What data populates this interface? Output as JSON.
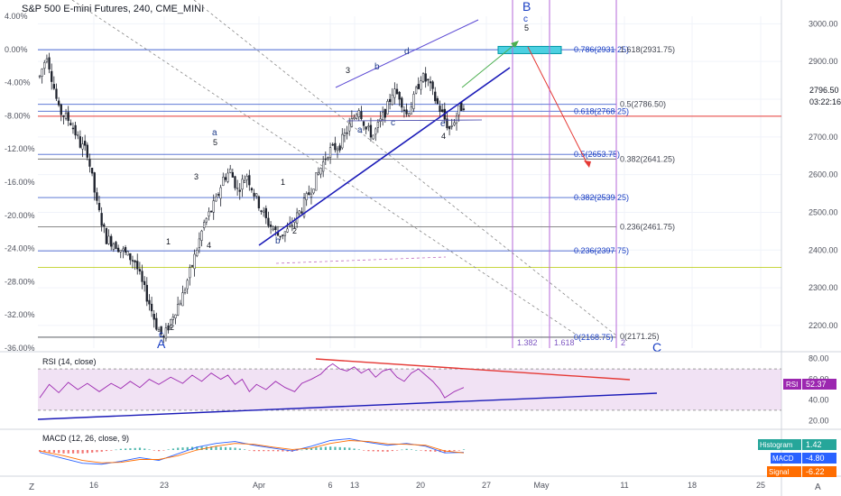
{
  "header": {
    "symbol_title": "S&P 500 E-mini Futures, 240, CME_MINI"
  },
  "colors": {
    "up_candle": "#26a69a",
    "down_candle": "#ef5350",
    "wave_label": "#1e3a8a",
    "fib_label": "#1a3fc4",
    "trend_blue": "#1b1bb8",
    "rsi_line": "#9c27b0",
    "rsi_band": "#e1bee7",
    "fib_box": "#4dd0e1",
    "red_line": "#e53935",
    "macd_line": "#2962ff",
    "signal_line": "#ff6d00",
    "green_arrow": "#4caf50"
  },
  "chart_data": {
    "type": "candlestick",
    "title": "S&P 500 E-mini Futures, 240, CME_MINI",
    "price_axis": {
      "ticks": [
        "3000.00",
        "2900.00",
        "2800.00",
        "2700.00",
        "2600.00",
        "2500.00",
        "2400.00",
        "2300.00",
        "2200.00"
      ],
      "range": [
        2140,
        3020
      ],
      "last_price": "2796.50",
      "countdown": "03:22:16"
    },
    "percent_axis": {
      "ticks": [
        "4.00%",
        "0.00%",
        "-4.00%",
        "-8.00%",
        "-12.00%",
        "-16.00%",
        "-20.00%",
        "-24.00%",
        "-28.00%",
        "-32.00%",
        "-36.00%"
      ]
    },
    "x_axis": {
      "ticks": [
        "16",
        "23",
        "Apr",
        "6",
        "13",
        "20",
        "27",
        "May",
        "11",
        "18",
        "25"
      ],
      "corner_left": "Z",
      "corner_right": "A"
    },
    "price_path": [
      [
        0,
        2860
      ],
      [
        3,
        2920
      ],
      [
        8,
        2770
      ],
      [
        13,
        2740
      ],
      [
        17,
        2680
      ],
      [
        20,
        2660
      ],
      [
        24,
        2520
      ],
      [
        28,
        2430
      ],
      [
        31,
        2420
      ],
      [
        36,
        2390
      ],
      [
        40,
        2370
      ],
      [
        43,
        2310
      ],
      [
        46,
        2260
      ],
      [
        49,
        2200
      ],
      [
        52,
        2165
      ],
      [
        56,
        2230
      ],
      [
        60,
        2280
      ],
      [
        64,
        2360
      ],
      [
        69,
        2470
      ],
      [
        74,
        2530
      ],
      [
        77,
        2590
      ],
      [
        80,
        2610
      ],
      [
        83,
        2560
      ],
      [
        87,
        2600
      ],
      [
        90,
        2550
      ],
      [
        95,
        2480
      ],
      [
        100,
        2440
      ],
      [
        104,
        2450
      ],
      [
        110,
        2510
      ],
      [
        116,
        2590
      ],
      [
        121,
        2660
      ],
      [
        126,
        2680
      ],
      [
        131,
        2740
      ],
      [
        134,
        2780
      ],
      [
        137,
        2720
      ],
      [
        140,
        2705
      ],
      [
        143,
        2740
      ],
      [
        146,
        2780
      ],
      [
        148,
        2820
      ],
      [
        151,
        2810
      ],
      [
        154,
        2760
      ],
      [
        157,
        2800
      ],
      [
        160,
        2860
      ],
      [
        163,
        2845
      ],
      [
        166,
        2800
      ],
      [
        169,
        2760
      ],
      [
        172,
        2720
      ],
      [
        174,
        2745
      ],
      [
        176,
        2770
      ],
      [
        178,
        2788
      ]
    ],
    "fib_levels_left": [
      {
        "label": "0.786(2931.25)",
        "price": 2931.25
      },
      {
        "label": "0.618(2768.25)",
        "price": 2768.25
      },
      {
        "label": "0.5(2653.75)",
        "price": 2653.75
      },
      {
        "label": "0.382(2539.25)",
        "price": 2539.25
      },
      {
        "label": "0.236(2397.75)",
        "price": 2397.75
      },
      {
        "label": "0(2168.75)",
        "price": 2168.75
      }
    ],
    "fib_levels_right": [
      {
        "label": "1.618(2931.75)",
        "price": 2931.75
      },
      {
        "label": "0.5(2786.50)",
        "price": 2786.5
      },
      {
        "label": "0.382(2641.25)",
        "price": 2641.25
      },
      {
        "label": "0.236(2461.75)",
        "price": 2461.75
      },
      {
        "label": "0(2171.25)",
        "price": 2171.25
      }
    ],
    "time_fib": [
      "1.382",
      "1.618",
      "2"
    ],
    "wave_labels": {
      "A": "A",
      "B": "B",
      "C": "C",
      "c": "c",
      "5": "5",
      "a": "a",
      "b": "b",
      "d": "d",
      "e": "e",
      "w1": "1",
      "w2": "2",
      "w3": "3",
      "w4": "4"
    },
    "rsi": {
      "label": "RSI (14, close)",
      "tag": "RSI",
      "value": "52.37",
      "ticks": [
        "80.00",
        "60.00",
        "40.00",
        "20.00"
      ],
      "range": [
        15,
        85
      ],
      "overbought": 70,
      "oversold": 30,
      "series": [
        [
          0,
          42
        ],
        [
          4,
          55
        ],
        [
          8,
          47
        ],
        [
          12,
          57
        ],
        [
          16,
          50
        ],
        [
          20,
          56
        ],
        [
          25,
          48
        ],
        [
          30,
          56
        ],
        [
          34,
          51
        ],
        [
          38,
          58
        ],
        [
          42,
          52
        ],
        [
          46,
          60
        ],
        [
          50,
          55
        ],
        [
          55,
          62
        ],
        [
          60,
          56
        ],
        [
          64,
          64
        ],
        [
          68,
          58
        ],
        [
          72,
          66
        ],
        [
          76,
          60
        ],
        [
          79,
          64
        ],
        [
          82,
          55
        ],
        [
          85,
          60
        ],
        [
          88,
          48
        ],
        [
          91,
          55
        ],
        [
          95,
          50
        ],
        [
          99,
          58
        ],
        [
          103,
          52
        ],
        [
          107,
          48
        ],
        [
          110,
          56
        ],
        [
          114,
          60
        ],
        [
          118,
          65
        ],
        [
          121,
          72
        ],
        [
          123,
          75
        ],
        [
          126,
          70
        ],
        [
          129,
          68
        ],
        [
          132,
          72
        ],
        [
          135,
          66
        ],
        [
          138,
          70
        ],
        [
          141,
          62
        ],
        [
          144,
          68
        ],
        [
          147,
          70
        ],
        [
          150,
          62
        ],
        [
          153,
          58
        ],
        [
          156,
          66
        ],
        [
          159,
          70
        ],
        [
          162,
          64
        ],
        [
          165,
          58
        ],
        [
          168,
          50
        ],
        [
          170,
          42
        ],
        [
          172,
          45
        ],
        [
          174,
          48
        ],
        [
          176,
          50
        ],
        [
          178,
          52
        ]
      ]
    },
    "macd": {
      "label": "MACD (12, 26, close, 9)",
      "histogram_tag": "Histogram",
      "histogram_value": "1.42",
      "macd_tag": "MACD",
      "macd_value": "-4.80",
      "signal_tag": "Signal",
      "signal_value": "-6.22",
      "range": [
        -40,
        40
      ],
      "macd_series": [
        [
          0,
          -5
        ],
        [
          10,
          -18
        ],
        [
          18,
          -28
        ],
        [
          26,
          -30
        ],
        [
          34,
          -24
        ],
        [
          42,
          -16
        ],
        [
          50,
          -22
        ],
        [
          58,
          -8
        ],
        [
          66,
          6
        ],
        [
          74,
          14
        ],
        [
          82,
          18
        ],
        [
          90,
          10
        ],
        [
          98,
          4
        ],
        [
          106,
          -2
        ],
        [
          114,
          8
        ],
        [
          122,
          20
        ],
        [
          130,
          24
        ],
        [
          138,
          16
        ],
        [
          146,
          10
        ],
        [
          154,
          14
        ],
        [
          162,
          8
        ],
        [
          170,
          -6
        ],
        [
          178,
          -5
        ]
      ],
      "signal_series": [
        [
          0,
          -2
        ],
        [
          10,
          -12
        ],
        [
          18,
          -22
        ],
        [
          26,
          -27
        ],
        [
          34,
          -26
        ],
        [
          42,
          -20
        ],
        [
          50,
          -20
        ],
        [
          58,
          -12
        ],
        [
          66,
          0
        ],
        [
          74,
          8
        ],
        [
          82,
          14
        ],
        [
          90,
          12
        ],
        [
          98,
          6
        ],
        [
          106,
          1
        ],
        [
          114,
          4
        ],
        [
          122,
          14
        ],
        [
          130,
          20
        ],
        [
          138,
          18
        ],
        [
          146,
          13
        ],
        [
          154,
          12
        ],
        [
          162,
          10
        ],
        [
          170,
          -2
        ],
        [
          178,
          -6
        ]
      ]
    }
  }
}
